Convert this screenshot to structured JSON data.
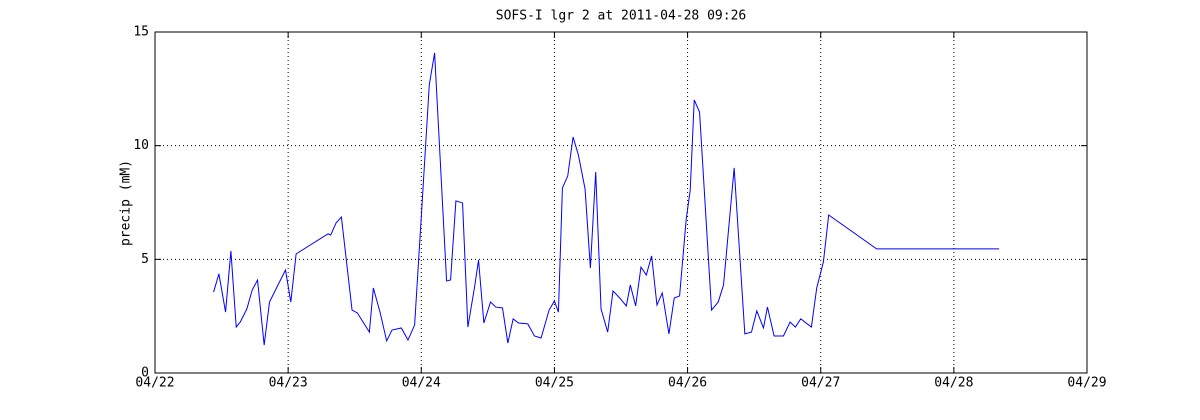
{
  "chart_data": {
    "type": "line",
    "title": "SOFS-I lgr 2 at 2011-04-28 09:26",
    "y_label": "precip (mM)",
    "x": [
      22.44,
      22.48,
      22.53,
      22.57,
      22.61,
      22.64,
      22.69,
      22.73,
      22.77,
      22.82,
      22.86,
      22.98,
      23.02,
      23.06,
      23.3,
      23.32,
      23.36,
      23.4,
      23.48,
      23.52,
      23.61,
      23.64,
      23.69,
      23.74,
      23.78,
      23.85,
      23.9,
      23.95,
      24.01,
      24.06,
      24.1,
      24.19,
      24.22,
      24.26,
      24.31,
      24.35,
      24.4,
      24.43,
      24.47,
      24.52,
      24.56,
      24.61,
      24.65,
      24.69,
      24.73,
      24.8,
      24.85,
      24.9,
      24.96,
      25.0,
      25.03,
      25.06,
      25.1,
      25.14,
      25.18,
      25.23,
      25.27,
      25.31,
      25.35,
      25.4,
      25.44,
      25.49,
      25.54,
      25.57,
      25.61,
      25.65,
      25.69,
      25.73,
      25.77,
      25.81,
      25.86,
      25.9,
      25.94,
      25.99,
      26.02,
      26.05,
      26.09,
      26.18,
      26.23,
      26.27,
      26.35,
      26.43,
      26.48,
      26.52,
      26.57,
      26.6,
      26.65,
      26.72,
      26.77,
      26.81,
      26.85,
      26.93,
      26.97,
      27.02,
      27.06,
      27.42,
      28.34
    ],
    "series": [
      {
        "color": "#0000ff",
        "values": [
          3.56,
          4.36,
          2.68,
          5.37,
          2.02,
          2.24,
          2.82,
          3.65,
          4.09,
          1.23,
          3.12,
          4.53,
          3.12,
          5.24,
          6.12,
          6.07,
          6.6,
          6.86,
          2.77,
          2.64,
          1.8,
          3.74,
          2.68,
          1.41,
          1.89,
          1.98,
          1.45,
          2.11,
          7.83,
          12.67,
          14.08,
          4.05,
          4.09,
          7.57,
          7.48,
          2.02,
          3.78,
          4.97,
          2.2,
          3.12,
          2.9,
          2.86,
          1.32,
          2.38,
          2.2,
          2.16,
          1.63,
          1.54,
          2.77,
          3.17,
          2.68,
          8.14,
          8.67,
          10.38,
          9.59,
          8.1,
          4.62,
          8.84,
          2.82,
          1.8,
          3.61,
          3.3,
          2.95,
          3.87,
          2.95,
          4.66,
          4.31,
          5.15,
          2.99,
          3.52,
          1.72,
          3.3,
          3.39,
          6.78,
          8.05,
          12.01,
          11.48,
          2.77,
          3.12,
          3.87,
          9.02,
          1.72,
          1.8,
          2.73,
          1.98,
          2.9,
          1.63,
          1.63,
          2.24,
          2.02,
          2.38,
          2.02,
          3.74,
          4.88,
          6.95,
          5.46,
          5.46
        ]
      }
    ],
    "xlim": [
      22,
      29
    ],
    "xticks": [
      {
        "value": 22,
        "label": "04/22"
      },
      {
        "value": 23,
        "label": "04/23"
      },
      {
        "value": 24,
        "label": "04/24"
      },
      {
        "value": 25,
        "label": "04/25"
      },
      {
        "value": 26,
        "label": "04/26"
      },
      {
        "value": 27,
        "label": "04/27"
      },
      {
        "value": 28,
        "label": "04/28"
      },
      {
        "value": 29,
        "label": "04/29"
      }
    ],
    "ylim": [
      0,
      15
    ],
    "yticks": [
      0,
      5,
      10,
      15
    ],
    "grid": true
  }
}
